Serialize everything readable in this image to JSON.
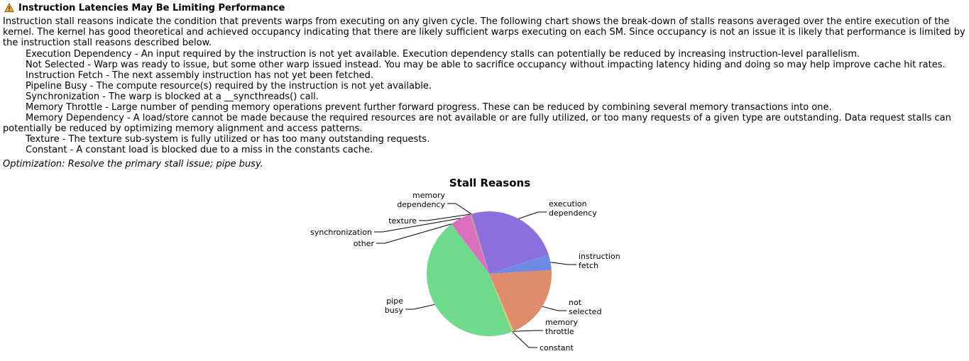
{
  "header": {
    "icon": "warning-icon",
    "title": "Instruction Latencies May Be Limiting Performance"
  },
  "intro": "Instruction stall reasons indicate the condition that prevents warps from executing on any given cycle. The following chart shows the break-down of stalls reasons averaged over the entire execution of the kernel. The kernel has good theoretical and achieved occupancy indicating that there are likely sufficient warps executing on each SM. Since occupancy is not an issue it is likely that performance is limited by the instruction stall reasons described below.",
  "reasons": [
    "Execution Dependency - An input required by the instruction is not yet available. Execution dependency stalls can potentially be reduced by increasing instruction-level parallelism.",
    "Not Selected - Warp was ready to issue, but some other warp issued instead. You may be able to sacrifice occupancy without impacting latency hiding and doing so may help improve cache hit rates.",
    "Instruction Fetch - The next assembly instruction has not yet been fetched.",
    "Pipeline Busy - The compute resource(s) required by the instruction is not yet available.",
    "Synchronization - The warp is blocked at a __syncthreads() call.",
    "Memory Throttle - Large number of pending memory operations prevent further forward progress. These can be reduced by combining several memory transactions into one.",
    "Memory Dependency - A load/store cannot be made because the required resources are not available or are fully utilized, or too many requests of a given type are outstanding. Data request stalls can potentially be reduced by optimizing memory alignment and access patterns.",
    "Texture - The texture sub-system is fully utilized or has too many outstanding requests.",
    "Constant - A constant load is blocked due to a miss in the constants cache."
  ],
  "optimization": "Optimization: Resolve the primary stall issue; pipe busy.",
  "chart_data": {
    "type": "pie",
    "title": "Stall Reasons",
    "unit": "percent",
    "slices": [
      {
        "label": "execution dependency",
        "lines": [
          "execution",
          "dependency"
        ],
        "value": 24.5,
        "color": "#8c6fdf"
      },
      {
        "label": "instruction fetch",
        "lines": [
          "instruction",
          "fetch"
        ],
        "value": 4.0,
        "color": "#6f8ae3"
      },
      {
        "label": "not selected",
        "lines": [
          "not",
          "selected"
        ],
        "value": 19.5,
        "color": "#de8c6b"
      },
      {
        "label": "memory throttle",
        "lines": [
          "memory",
          "throttle"
        ],
        "value": 0.3,
        "color": "#c9d46a"
      },
      {
        "label": "constant",
        "lines": [
          "constant"
        ],
        "value": 0.2,
        "color": "#dfc26f"
      },
      {
        "label": "pipe busy",
        "lines": [
          "pipe",
          "busy"
        ],
        "value": 45.5,
        "color": "#6fd98c"
      },
      {
        "label": "other",
        "lines": [
          "other"
        ],
        "value": 0.2,
        "color": "#a0a0a0"
      },
      {
        "label": "synchronization",
        "lines": [
          "synchronization"
        ],
        "value": 5.3,
        "color": "#dc6fbd"
      },
      {
        "label": "texture",
        "lines": [
          "texture"
        ],
        "value": 0.2,
        "color": "#6fc9dc"
      },
      {
        "label": "memory dependency",
        "lines": [
          "memory",
          "dependency"
        ],
        "value": 0.3,
        "color": "#d96f6f"
      }
    ]
  }
}
